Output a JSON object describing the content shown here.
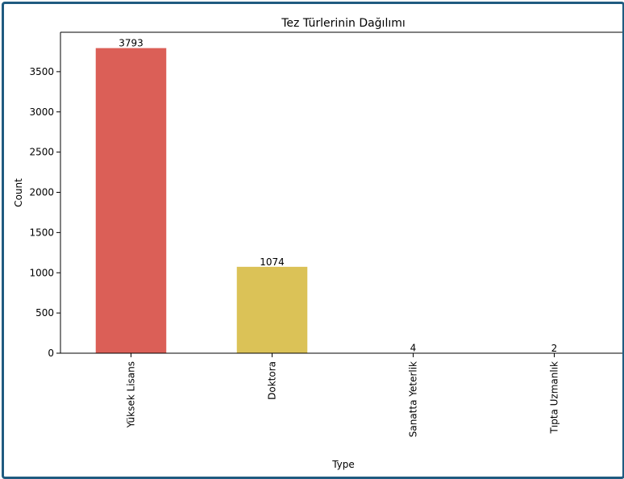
{
  "chart_data": {
    "type": "bar",
    "title": "Tez Türlerinin Dağılımı",
    "xlabel": "Type",
    "ylabel": "Count",
    "categories": [
      "Yüksek Lisans",
      "Doktora",
      "Sanatta Yeterlik",
      "Tıpta Uzmanlık"
    ],
    "values": [
      3793,
      1074,
      4,
      2
    ],
    "value_labels": [
      "3793",
      "1074",
      "4",
      "2"
    ],
    "colors": [
      "#db5f57",
      "#dbc257",
      "#91db57",
      "#57db80"
    ],
    "ylim": [
      0,
      3990
    ],
    "yticks": [
      0,
      500,
      1000,
      1500,
      2000,
      2500,
      3000,
      3500
    ],
    "ytick_labels": [
      "0",
      "500",
      "1000",
      "1500",
      "2000",
      "2500",
      "3000",
      "3500"
    ],
    "grid": false,
    "legend": "none"
  }
}
